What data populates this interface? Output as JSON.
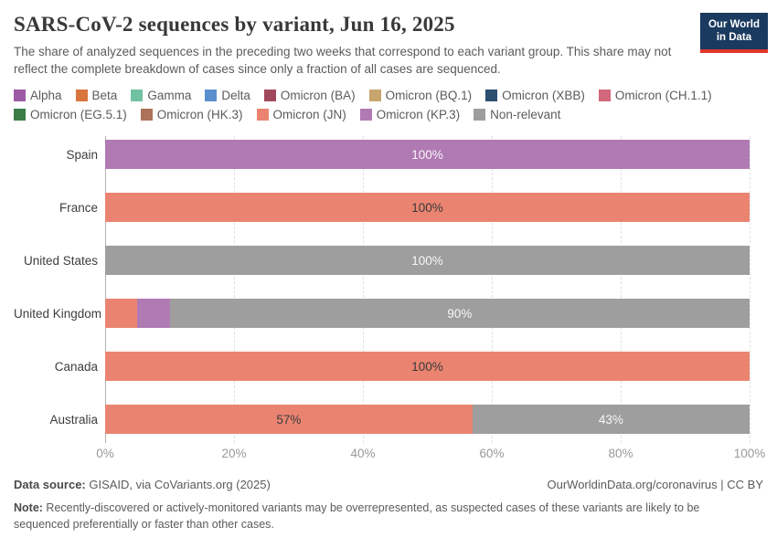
{
  "header": {
    "title": "SARS-CoV-2 sequences by variant, Jun 16, 2025",
    "subtitle": "The share of analyzed sequences in the preceding two weeks that correspond to each variant group. This share may not reflect the complete breakdown of cases since only a fraction of all cases are sequenced.",
    "logo": {
      "line1": "Our World",
      "line2": "in Data",
      "bg_color": "#1a3a5f",
      "accent_color": "#e0362c"
    }
  },
  "legend": {
    "items": [
      {
        "label": "Alpha",
        "color": "#9c5ba4"
      },
      {
        "label": "Beta",
        "color": "#d9763d"
      },
      {
        "label": "Gamma",
        "color": "#71c2a1"
      },
      {
        "label": "Delta",
        "color": "#5b8fce"
      },
      {
        "label": "Omicron (BA)",
        "color": "#a2485c"
      },
      {
        "label": "Omicron (BQ.1)",
        "color": "#c8a56e"
      },
      {
        "label": "Omicron (XBB)",
        "color": "#2d4f71"
      },
      {
        "label": "Omicron (CH.1.1)",
        "color": "#d3677c"
      },
      {
        "label": "Omicron (EG.5.1)",
        "color": "#3b7c47"
      },
      {
        "label": "Omicron (HK.3)",
        "color": "#ad7358"
      },
      {
        "label": "Omicron (JN)",
        "color": "#ea8471"
      },
      {
        "label": "Omicron (KP.3)",
        "color": "#b07ab3"
      },
      {
        "label": "Non-relevant",
        "color": "#9e9e9e"
      }
    ]
  },
  "chart_data": {
    "type": "bar",
    "orientation": "horizontal_stacked",
    "title": "SARS-CoV-2 sequences by variant, Jun 16, 2025",
    "categories": [
      "Spain",
      "France",
      "United States",
      "United Kingdom",
      "Canada",
      "Australia"
    ],
    "series": [
      {
        "name": "Omicron (KP.3)",
        "color": "#b07ab3",
        "values": [
          100,
          0,
          0,
          5,
          0,
          0
        ]
      },
      {
        "name": "Omicron (JN)",
        "color": "#ea8471",
        "values": [
          0,
          100,
          0,
          5,
          100,
          57
        ]
      },
      {
        "name": "Non-relevant",
        "color": "#9e9e9e",
        "values": [
          0,
          0,
          100,
          90,
          0,
          43
        ]
      }
    ],
    "xlim": [
      0,
      100
    ],
    "x_ticks": [
      "0%",
      "20%",
      "40%",
      "60%",
      "80%",
      "100%"
    ],
    "grid": "dashed-vertical",
    "legend_position": "top",
    "rows": [
      {
        "country": "Spain",
        "segments": [
          {
            "variant": "Omicron (KP.3)",
            "value": 100,
            "color": "#b07ab3",
            "label": "100%",
            "label_style": "light"
          }
        ]
      },
      {
        "country": "France",
        "segments": [
          {
            "variant": "Omicron (JN)",
            "value": 100,
            "color": "#ea8471",
            "label": "100%",
            "label_style": "dark"
          }
        ]
      },
      {
        "country": "United States",
        "segments": [
          {
            "variant": "Non-relevant",
            "value": 100,
            "color": "#9e9e9e",
            "label": "100%",
            "label_style": "light"
          }
        ]
      },
      {
        "country": "United Kingdom",
        "segments": [
          {
            "variant": "Omicron (JN)",
            "value": 5,
            "color": "#ea8471",
            "label": "",
            "label_style": "dark"
          },
          {
            "variant": "Omicron (KP.3)",
            "value": 5,
            "color": "#b07ab3",
            "label": "",
            "label_style": "light"
          },
          {
            "variant": "Non-relevant",
            "value": 90,
            "color": "#9e9e9e",
            "label": "90%",
            "label_style": "light"
          }
        ]
      },
      {
        "country": "Canada",
        "segments": [
          {
            "variant": "Omicron (JN)",
            "value": 100,
            "color": "#ea8471",
            "label": "100%",
            "label_style": "dark"
          }
        ]
      },
      {
        "country": "Australia",
        "segments": [
          {
            "variant": "Omicron (JN)",
            "value": 57,
            "color": "#ea8471",
            "label": "57%",
            "label_style": "dark"
          },
          {
            "variant": "Non-relevant",
            "value": 43,
            "color": "#9e9e9e",
            "label": "43%",
            "label_style": "light"
          }
        ]
      }
    ]
  },
  "footer": {
    "source_label": "Data source:",
    "source_text": " GISAID, via CoVariants.org (2025)",
    "link": "OurWorldinData.org/coronavirus | CC BY",
    "note_label": "Note:",
    "note_text": " Recently-discovered or actively-monitored variants may be overrepresented, as suspected cases of these variants are likely to be sequenced preferentially or faster than other cases."
  }
}
